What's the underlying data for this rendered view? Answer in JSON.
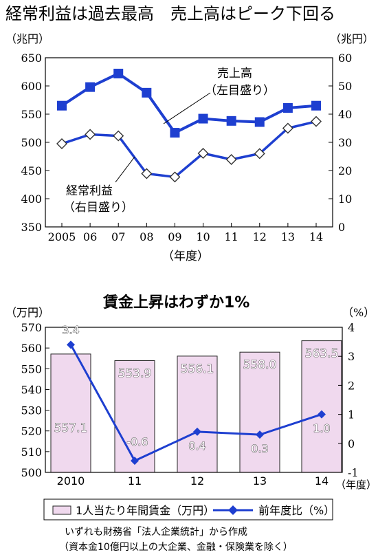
{
  "chart_data": [
    {
      "type": "line",
      "title": "経常利益は過去最高　売上高はピーク下回る",
      "left_unit": "（兆円）",
      "right_unit": "（兆円）",
      "xlabel": "（年度）",
      "categories": [
        "2005",
        "06",
        "07",
        "08",
        "09",
        "10",
        "11",
        "12",
        "13",
        "14"
      ],
      "yticks_left": [
        "650",
        "600",
        "550",
        "500",
        "450",
        "400",
        "350"
      ],
      "yticks_right": [
        "60",
        "50",
        "40",
        "30",
        "20",
        "10",
        "0"
      ],
      "ylim_left": [
        350,
        650
      ],
      "ylim_right": [
        0,
        60
      ],
      "series": [
        {
          "name": "売上高",
          "axis": "left",
          "marker": "square",
          "label_line1": "売上高",
          "label_line2": "（左目盛り）",
          "values": [
            565,
            598,
            622,
            588,
            517,
            542,
            538,
            536,
            561,
            565
          ]
        },
        {
          "name": "経常利益",
          "axis": "right",
          "marker": "diamond",
          "label_line1": "経常利益",
          "label_line2": "（右目盛り）",
          "values": [
            29.5,
            32.8,
            32.3,
            18.9,
            17.7,
            26.1,
            23.9,
            26.0,
            35.0,
            37.4
          ]
        }
      ],
      "colors": {
        "line": "#1e3fd0",
        "marker_fill": "#1e3fd0",
        "hollow_fill": "#ffffff"
      },
      "grid": false
    },
    {
      "type": "bar",
      "title": "賃金上昇はわずか1%",
      "left_unit": "（万円）",
      "right_unit": "（%）",
      "xlabel": "（年度）",
      "categories": [
        "2010",
        "11",
        "12",
        "13",
        "14"
      ],
      "yticks_left": [
        "570",
        "560",
        "550",
        "540",
        "530",
        "520",
        "510",
        "500"
      ],
      "yticks_right": [
        "4",
        "3",
        "2",
        "1",
        "0",
        "-1"
      ],
      "ylim_left": [
        500,
        570
      ],
      "ylim_right": [
        -1,
        4
      ],
      "series": [
        {
          "name": "1人当たり年間賃金（万円）",
          "axis": "left",
          "type": "bar",
          "values": [
            557.1,
            553.9,
            556.1,
            558.0,
            563.5
          ],
          "labels": [
            "557.1",
            "553.9",
            "556.1",
            "558.0",
            "563.5"
          ]
        },
        {
          "name": "前年度比（%）",
          "axis": "right",
          "type": "line",
          "values": [
            3.4,
            -0.6,
            0.4,
            0.3,
            1.0
          ],
          "labels": [
            "3.4",
            "-0.6",
            "0.4",
            "0.3",
            "1.0"
          ]
        }
      ],
      "colors": {
        "bar_fill": "#f0d9ee",
        "bar_stroke": "#222222",
        "line": "#1e3fd0"
      },
      "grid": false
    }
  ],
  "source_note": {
    "line1": "いずれも財務省「法人企業統計」から作成",
    "line2": "（資本金10億円以上の大企業、金融・保険業を除く）"
  }
}
